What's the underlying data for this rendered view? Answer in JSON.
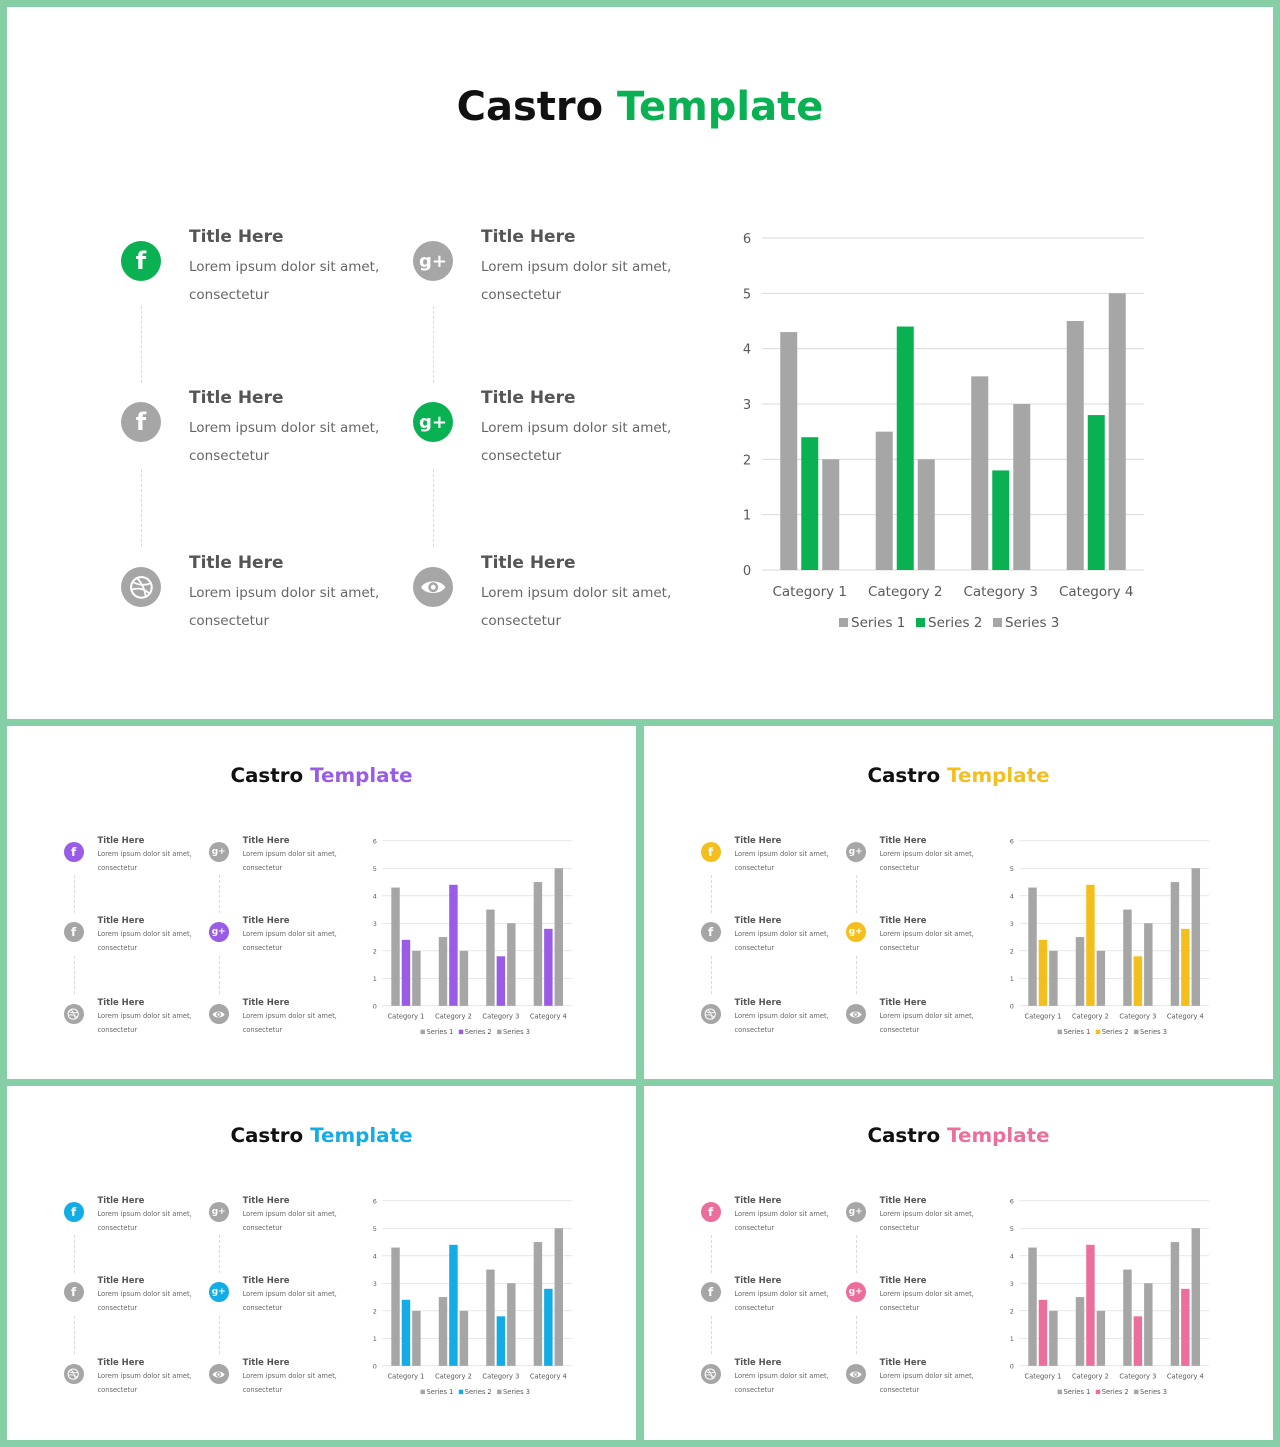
{
  "title": {
    "part1": "Castro",
    "part2": "Template"
  },
  "features": [
    {
      "icon": "facebook-icon",
      "glyph": "f",
      "title": "Title Here",
      "desc": "Lorem ipsum dolor sit amet, consectetur"
    },
    {
      "icon": "google-plus-icon",
      "glyph": "g+",
      "title": "Title Here",
      "desc": "Lorem ipsum dolor sit amet, consectetur"
    },
    {
      "icon": "facebook-icon",
      "glyph": "f",
      "title": "Title Here",
      "desc": "Lorem ipsum dolor sit amet, consectetur"
    },
    {
      "icon": "google-plus-icon",
      "glyph": "g+",
      "title": "Title Here",
      "desc": "Lorem ipsum dolor sit amet, consectetur"
    },
    {
      "icon": "dribbble-icon",
      "glyph": "",
      "title": "Title Here",
      "desc": "Lorem ipsum dolor sit amet, consectetur"
    },
    {
      "icon": "eye-icon",
      "glyph": "",
      "title": "Title Here",
      "desc": "Lorem ipsum dolor sit amet, consectetur"
    }
  ],
  "accents": [
    {
      "name": "green",
      "color": "#0ab152"
    },
    {
      "name": "purple",
      "color": "#9a5ce6"
    },
    {
      "name": "yellow",
      "color": "#f4bf1d"
    },
    {
      "name": "blue",
      "color": "#14ace4"
    },
    {
      "name": "pink",
      "color": "#ec6e9c"
    }
  ],
  "neutral_color": "#a6a6a6",
  "chart_data": {
    "type": "bar",
    "categories": [
      "Category 1",
      "Category 2",
      "Category 3",
      "Category 4"
    ],
    "series": [
      {
        "name": "Series 1",
        "values": [
          4.3,
          2.5,
          3.5,
          4.5
        ]
      },
      {
        "name": "Series 2",
        "values": [
          2.4,
          4.4,
          1.8,
          2.8
        ]
      },
      {
        "name": "Series 3",
        "values": [
          2,
          2,
          3,
          5
        ]
      }
    ],
    "yticks": [
      "0",
      "1",
      "2",
      "3",
      "4",
      "5",
      "6"
    ],
    "ylim": [
      0,
      6
    ],
    "grid": true,
    "legend": "bottom",
    "highlight_series": "Series 2"
  }
}
